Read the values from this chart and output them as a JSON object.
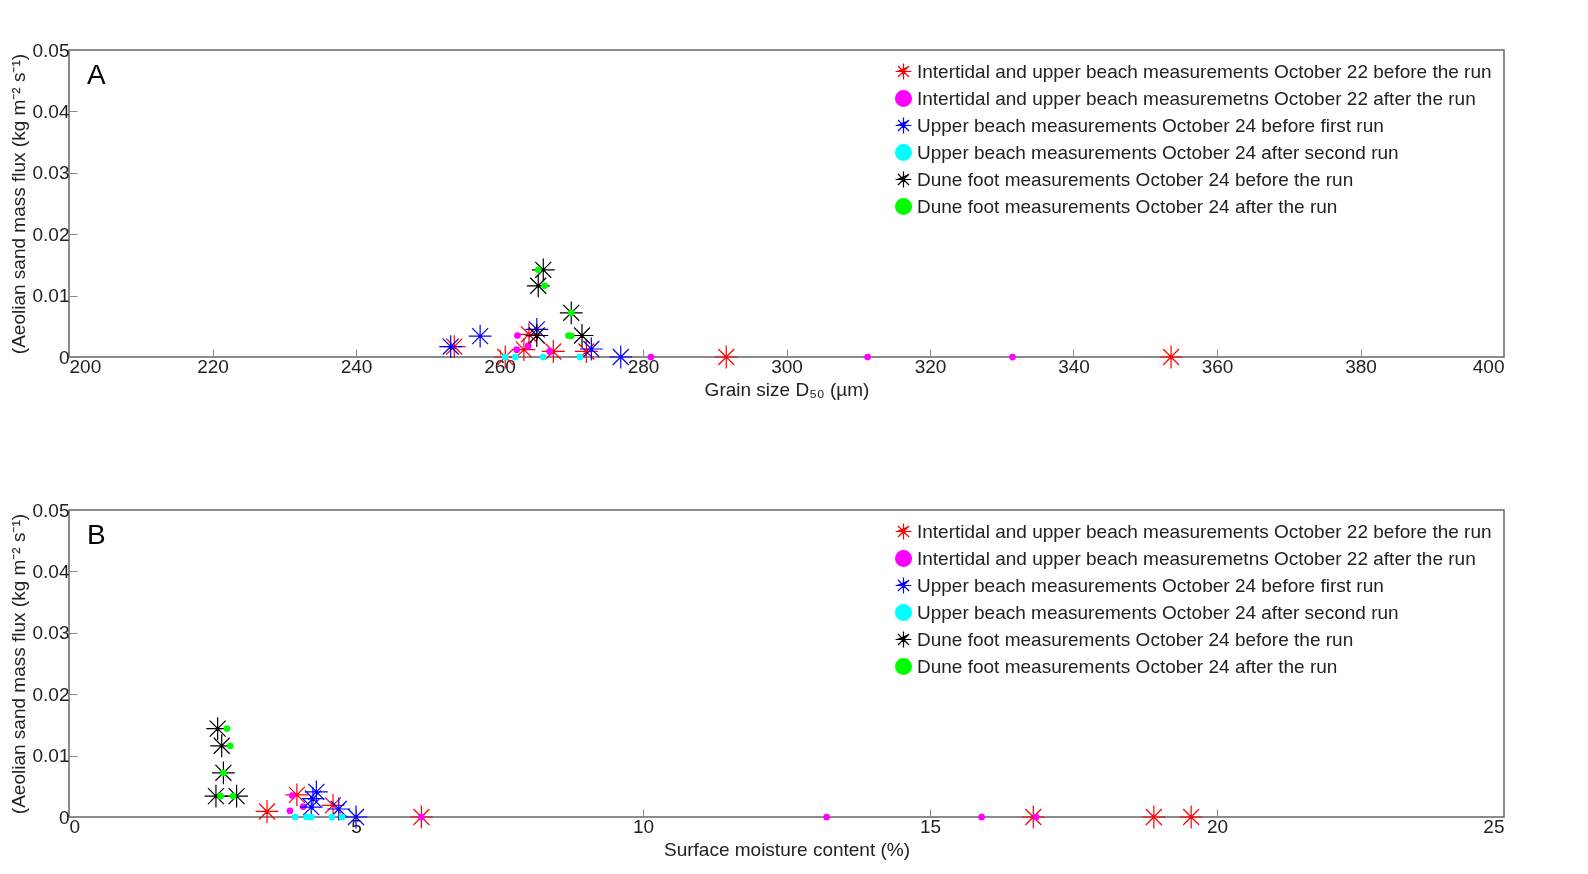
{
  "chart_data": [
    {
      "type": "scatter",
      "xlabel": "Grain size D₅₀ (µm)",
      "ylabel": "(Aeolian sand mass flux (kg m⁻² s⁻¹)",
      "annotations": [
        "A"
      ],
      "xlim": [
        200,
        400
      ],
      "xticks": [
        200,
        220,
        240,
        260,
        280,
        300,
        320,
        340,
        360,
        380,
        400
      ],
      "ylim": [
        0,
        0.05
      ],
      "yticks": [
        0,
        0.01,
        0.02,
        0.03,
        0.04,
        0.05
      ],
      "grid": false,
      "legend": "top right",
      "series": [
        {
          "name": "Intertidal and upper beach measurements October 22 before the run",
          "color": "#ff0000",
          "marker": "cross",
          "x": [
            253.7,
            260.8,
            263.4,
            264.1,
            267.5,
            272.1,
            291.6,
            353.6
          ],
          "values": [
            0.0017,
            0,
            0.0012,
            0.0037,
            0.0009,
            0.0009,
            0,
            0
          ]
        },
        {
          "name": "Intertidal and upper beach measuremetns October 22 after the run",
          "color": "#ff00ff",
          "marker": "circle",
          "x": [
            262.5,
            262.4,
            264.0,
            267.0,
            281.1,
            311.3,
            331.5
          ],
          "values": [
            0.0035,
            0.0012,
            0.0018,
            0.0009,
            0,
            0,
            0
          ]
        },
        {
          "name": "Upper beach measurements October 24 before first run",
          "color": "#0000ff",
          "marker": "cross",
          "x": [
            253.2,
            257.3,
            265.2,
            272.8,
            276.9
          ],
          "values": [
            0.0017,
            0.0034,
            0.0045,
            0.0013,
            0
          ]
        },
        {
          "name": "Upper beach measurements October 24 after second run",
          "color": "#00ffff",
          "marker": "circle",
          "x": [
            260.8,
            262.2,
            266.1,
            271.2
          ],
          "values": [
            0,
            0,
            0,
            0
          ]
        },
        {
          "name": "Dune foot measurements October 24 before the run",
          "color": "#000000",
          "marker": "cross",
          "x": [
            266.1,
            265.4,
            270.0,
            265.2,
            271.5
          ],
          "values": [
            0.0142,
            0.0116,
            0.0072,
            0.0035,
            0.0035
          ]
        },
        {
          "name": "Dune foot measurements October 24 after the run",
          "color": "#00ff00",
          "marker": "circle",
          "x": [
            265.4,
            266.3,
            270.0,
            269.6,
            270.0
          ],
          "values": [
            0.0142,
            0.0116,
            0.0072,
            0.0035,
            0.0034
          ]
        }
      ]
    },
    {
      "type": "scatter",
      "xlabel": "Surface moisture content (%)",
      "ylabel": "(Aeolian sand mass flux (kg m⁻² s⁻¹)",
      "annotations": [
        "B"
      ],
      "xlim": [
        0,
        25
      ],
      "xticks": [
        0,
        5,
        10,
        15,
        20,
        25
      ],
      "ylim": [
        0,
        0.05
      ],
      "yticks": [
        0,
        0.01,
        0.02,
        0.03,
        0.04,
        0.05
      ],
      "grid": false,
      "legend": "top right",
      "series": [
        {
          "name": "Intertidal and upper beach measurements October 22 before the run",
          "color": "#ff0000",
          "marker": "cross",
          "x": [
            3.45,
            3.97,
            4.6,
            6.14,
            16.8,
            18.9,
            19.55
          ],
          "values": [
            0.0009,
            0.0036,
            0.0019,
            0,
            0,
            0,
            0
          ]
        },
        {
          "name": "Intertidal and upper beach measuremetns October 22 after the run",
          "color": "#ff00ff",
          "marker": "circle",
          "x": [
            3.89,
            3.85,
            4.08,
            6.14,
            13.2,
            15.9,
            16.85
          ],
          "values": [
            0.0035,
            0.001,
            0.0017,
            0,
            0,
            0,
            0
          ]
        },
        {
          "name": "Upper beach measurements October 24 before first run",
          "color": "#0000ff",
          "marker": "cross",
          "x": [
            4.31,
            4.25,
            4.22,
            4.7,
            5.0
          ],
          "values": [
            0.0041,
            0.003,
            0.0016,
            0.0013,
            0
          ]
        },
        {
          "name": "Upper beach measurements October 24 after second run",
          "color": "#00ffff",
          "marker": "circle",
          "x": [
            3.94,
            4.14,
            4.22,
            4.58,
            4.76
          ],
          "values": [
            0,
            0,
            0,
            0,
            0
          ]
        },
        {
          "name": "Dune foot measurements October 24 before the run",
          "color": "#000000",
          "marker": "cross",
          "x": [
            2.59,
            2.66,
            2.69,
            2.56,
            2.92
          ],
          "values": [
            0.0144,
            0.0116,
            0.0072,
            0.0034,
            0.0034
          ]
        },
        {
          "name": "Dune foot measurements October 24 after the run",
          "color": "#00ff00",
          "marker": "circle",
          "x": [
            2.75,
            2.81,
            2.69,
            2.64,
            2.86
          ],
          "values": [
            0.0144,
            0.0116,
            0.0072,
            0.0034,
            0.0034
          ]
        }
      ]
    }
  ]
}
